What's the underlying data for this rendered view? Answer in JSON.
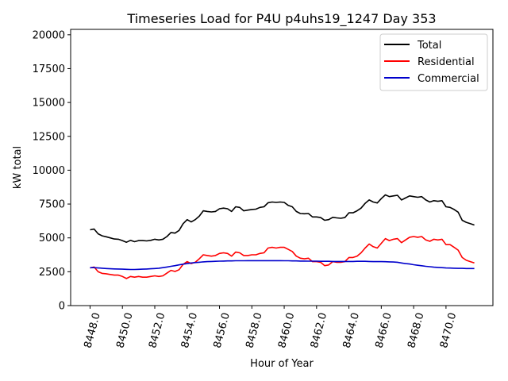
{
  "chart_data": {
    "type": "line",
    "title": "Timeseries Load for P4U p4uhs19_1247  Day 353",
    "xlabel": "Hour of Year",
    "ylabel": "kW total",
    "xlim": [
      8446.8,
      8472.9
    ],
    "ylim": [
      0,
      20400
    ],
    "xticks": [
      8448,
      8450,
      8452,
      8454,
      8456,
      8458,
      8460,
      8462,
      8464,
      8466,
      8468,
      8470
    ],
    "xtick_labels": [
      "8448.0",
      "8450.0",
      "8452.0",
      "8454.0",
      "8456.0",
      "8458.0",
      "8460.0",
      "8462.0",
      "8464.0",
      "8466.0",
      "8468.0",
      "8470.0"
    ],
    "yticks": [
      0,
      2500,
      5000,
      7500,
      10000,
      12500,
      15000,
      17500,
      20000
    ],
    "ytick_labels": [
      "0",
      "2500",
      "5000",
      "7500",
      "10000",
      "12500",
      "15000",
      "17500",
      "20000"
    ],
    "legend_position": "top-right",
    "x": [
      8448.0,
      8448.25,
      8448.5,
      8448.75,
      8449.0,
      8449.25,
      8449.5,
      8449.75,
      8450.0,
      8450.25,
      8450.5,
      8450.75,
      8451.0,
      8451.25,
      8451.5,
      8451.75,
      8452.0,
      8452.25,
      8452.5,
      8452.75,
      8453.0,
      8453.25,
      8453.5,
      8453.75,
      8454.0,
      8454.25,
      8454.5,
      8454.75,
      8455.0,
      8455.25,
      8455.5,
      8455.75,
      8456.0,
      8456.25,
      8456.5,
      8456.75,
      8457.0,
      8457.25,
      8457.5,
      8457.75,
      8458.0,
      8458.25,
      8458.5,
      8458.75,
      8459.0,
      8459.25,
      8459.5,
      8459.75,
      8460.0,
      8460.25,
      8460.5,
      8460.75,
      8461.0,
      8461.25,
      8461.5,
      8461.75,
      8462.0,
      8462.25,
      8462.5,
      8462.75,
      8463.0,
      8463.25,
      8463.5,
      8463.75,
      8464.0,
      8464.25,
      8464.5,
      8464.75,
      8465.0,
      8465.25,
      8465.5,
      8465.75,
      8466.0,
      8466.25,
      8466.5,
      8466.75,
      8467.0,
      8467.25,
      8467.5,
      8467.75,
      8468.0,
      8468.25,
      8468.5,
      8468.75,
      8469.0,
      8469.25,
      8469.5,
      8469.75,
      8470.0,
      8470.25,
      8470.5,
      8470.75,
      8471.0,
      8471.25,
      8471.5,
      8471.75
    ],
    "series": [
      {
        "name": "Total",
        "color": "#000000",
        "values": [
          5600,
          5650,
          5300,
          5150,
          5080,
          5000,
          4920,
          4900,
          4800,
          4680,
          4820,
          4720,
          4800,
          4800,
          4780,
          4820,
          4900,
          4850,
          4900,
          5100,
          5400,
          5350,
          5550,
          6050,
          6350,
          6180,
          6350,
          6600,
          7000,
          6950,
          6920,
          6950,
          7150,
          7200,
          7150,
          6950,
          7300,
          7250,
          7000,
          7050,
          7100,
          7120,
          7250,
          7300,
          7600,
          7650,
          7620,
          7650,
          7620,
          7400,
          7300,
          6950,
          6800,
          6780,
          6800,
          6550,
          6550,
          6500,
          6300,
          6350,
          6520,
          6480,
          6450,
          6500,
          6850,
          6850,
          7000,
          7200,
          7550,
          7800,
          7650,
          7580,
          7900,
          8180,
          8050,
          8100,
          8150,
          7800,
          7950,
          8100,
          8050,
          8000,
          8050,
          7800,
          7650,
          7750,
          7700,
          7750,
          7300,
          7250,
          7100,
          6900,
          6300,
          6150,
          6050,
          5950
        ]
      },
      {
        "name": "Residential",
        "color": "#ff0000",
        "values": [
          2780,
          2850,
          2500,
          2380,
          2350,
          2300,
          2250,
          2250,
          2150,
          2000,
          2150,
          2100,
          2150,
          2100,
          2100,
          2150,
          2200,
          2150,
          2200,
          2400,
          2600,
          2520,
          2650,
          3050,
          3250,
          3100,
          3200,
          3450,
          3750,
          3700,
          3650,
          3700,
          3850,
          3900,
          3850,
          3650,
          3950,
          3900,
          3700,
          3700,
          3750,
          3750,
          3850,
          3900,
          4250,
          4300,
          4250,
          4300,
          4300,
          4150,
          4000,
          3650,
          3500,
          3450,
          3500,
          3250,
          3250,
          3200,
          2950,
          3000,
          3250,
          3200,
          3200,
          3250,
          3550,
          3550,
          3650,
          3900,
          4250,
          4550,
          4350,
          4250,
          4600,
          4950,
          4800,
          4900,
          4950,
          4650,
          4850,
          5050,
          5100,
          5050,
          5100,
          4850,
          4750,
          4900,
          4850,
          4900,
          4500,
          4500,
          4300,
          4100,
          3550,
          3350,
          3250,
          3150
        ]
      },
      {
        "name": "Commercial",
        "color": "#0000cc",
        "values": [
          2800,
          2800,
          2780,
          2760,
          2740,
          2720,
          2710,
          2700,
          2690,
          2680,
          2670,
          2670,
          2680,
          2690,
          2700,
          2720,
          2740,
          2760,
          2800,
          2850,
          2900,
          2950,
          3010,
          3060,
          3100,
          3150,
          3180,
          3200,
          3230,
          3250,
          3260,
          3270,
          3280,
          3290,
          3300,
          3300,
          3310,
          3310,
          3310,
          3320,
          3320,
          3320,
          3320,
          3320,
          3320,
          3320,
          3320,
          3320,
          3310,
          3310,
          3300,
          3300,
          3290,
          3290,
          3280,
          3280,
          3280,
          3270,
          3270,
          3270,
          3260,
          3260,
          3260,
          3260,
          3260,
          3260,
          3270,
          3270,
          3270,
          3260,
          3250,
          3250,
          3250,
          3240,
          3230,
          3220,
          3200,
          3150,
          3100,
          3070,
          3020,
          2980,
          2940,
          2900,
          2870,
          2840,
          2820,
          2800,
          2780,
          2770,
          2760,
          2750,
          2750,
          2740,
          2740,
          2740
        ]
      }
    ]
  }
}
